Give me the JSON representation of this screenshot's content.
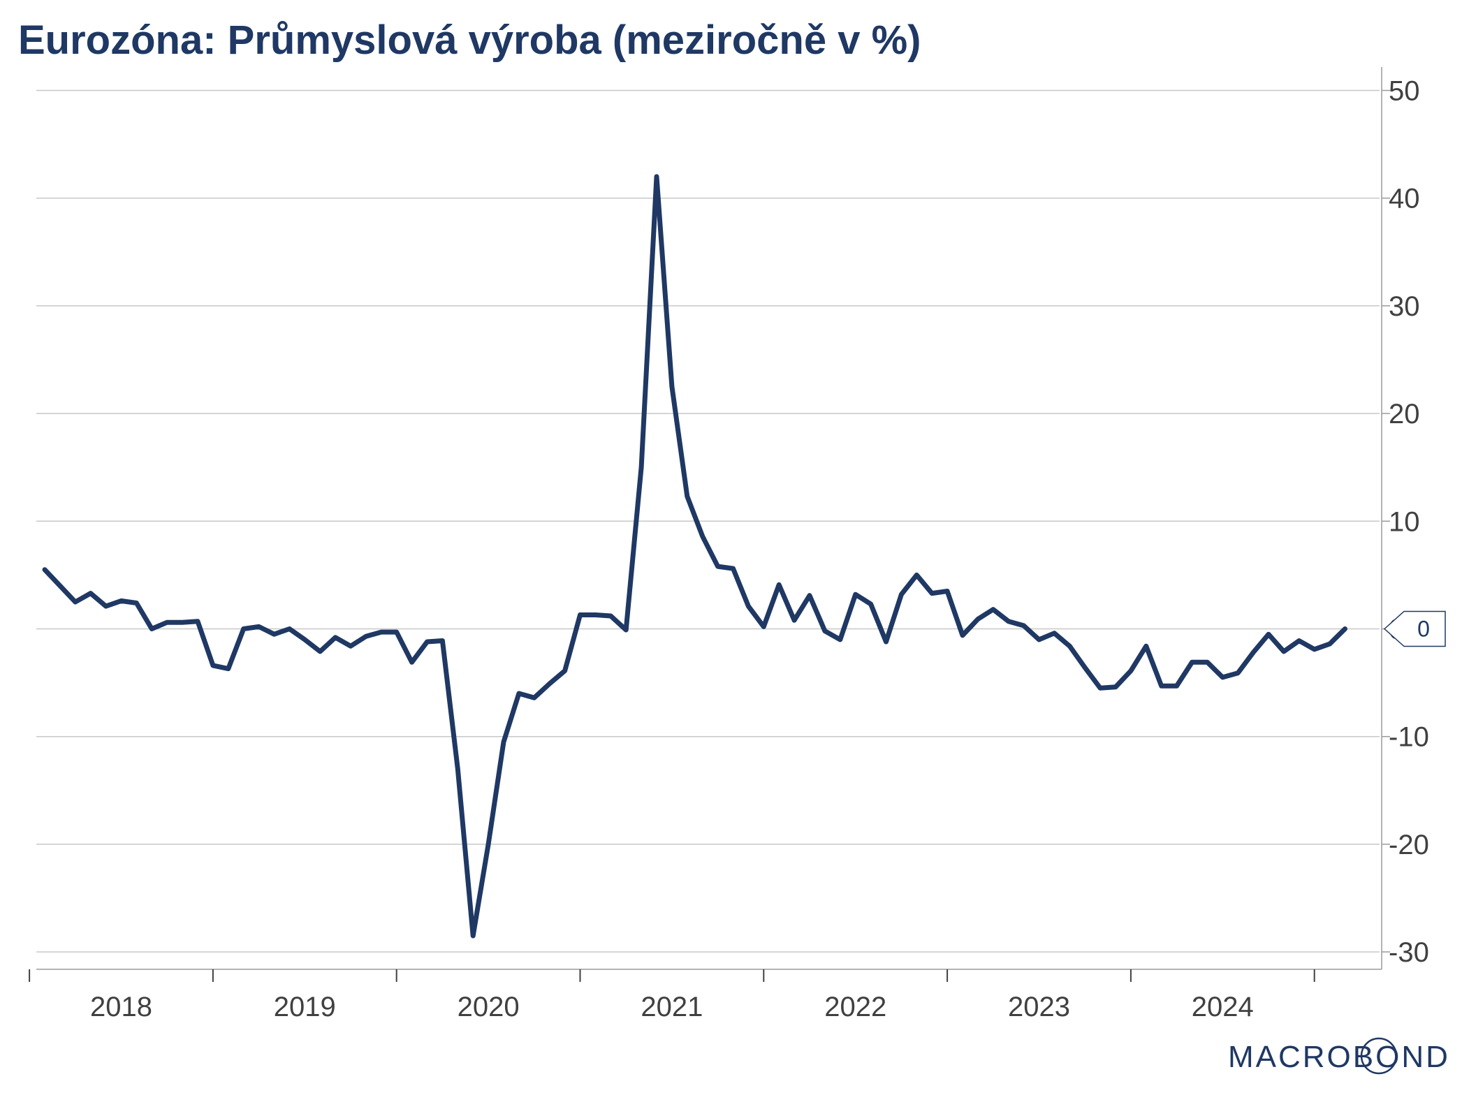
{
  "chart_data": {
    "type": "line",
    "title": "Eurozóna: Průmyslová výroba (meziročně v %)",
    "xlabel": "",
    "ylabel": "",
    "ylim": [
      -30,
      50
    ],
    "yticks": [
      50,
      40,
      30,
      20,
      10,
      0,
      -10,
      -20,
      -30
    ],
    "xticks": [
      "2018",
      "2019",
      "2020",
      "2021",
      "2022",
      "2023",
      "2024"
    ],
    "grid": true,
    "y_axis_position": "right",
    "line_color": "#1f3864",
    "last_value_label": "0",
    "series": [
      {
        "x": [
          "2018-01",
          "2018-02",
          "2018-03",
          "2018-04",
          "2018-05",
          "2018-06",
          "2018-07",
          "2018-08",
          "2018-09",
          "2018-10",
          "2018-11",
          "2018-12",
          "2019-01",
          "2019-02",
          "2019-03",
          "2019-04",
          "2019-05",
          "2019-06",
          "2019-07",
          "2019-08",
          "2019-09",
          "2019-10",
          "2019-11",
          "2019-12",
          "2020-01",
          "2020-02",
          "2020-03",
          "2020-04",
          "2020-05",
          "2020-06",
          "2020-07",
          "2020-08",
          "2020-09",
          "2020-10",
          "2020-11",
          "2020-12",
          "2021-01",
          "2021-02",
          "2021-03",
          "2021-04",
          "2021-05",
          "2021-06",
          "2021-07",
          "2021-08",
          "2021-09",
          "2021-10",
          "2021-11",
          "2021-12",
          "2022-01",
          "2022-02",
          "2022-03",
          "2022-04",
          "2022-05",
          "2022-06",
          "2022-07",
          "2022-08",
          "2022-09",
          "2022-10",
          "2022-11",
          "2022-12",
          "2023-01",
          "2023-02",
          "2023-03",
          "2023-04",
          "2023-05",
          "2023-06",
          "2023-07",
          "2023-08",
          "2023-09",
          "2023-10",
          "2023-11",
          "2023-12",
          "2024-01",
          "2024-02",
          "2024-03",
          "2024-04",
          "2024-05",
          "2024-06",
          "2024-07",
          "2024-08",
          "2024-09",
          "2024-10",
          "2024-11",
          "2024-12",
          "2025-01",
          "2025-02"
        ],
        "values": [
          5.5,
          4.0,
          2.5,
          3.3,
          2.1,
          2.6,
          2.4,
          0.0,
          0.6,
          0.6,
          0.7,
          -3.4,
          -3.7,
          0.0,
          0.2,
          -0.5,
          0.0,
          -1.0,
          -2.1,
          -0.8,
          -1.6,
          -0.7,
          -0.3,
          -0.3,
          -3.1,
          -1.2,
          -1.1,
          -13.0,
          -28.5,
          -20.0,
          -10.5,
          -6.0,
          -6.4,
          -5.1,
          -3.9,
          1.3,
          1.3,
          1.2,
          -0.1,
          15.0,
          42.0,
          22.5,
          12.3,
          8.6,
          5.8,
          5.6,
          2.1,
          0.2,
          4.1,
          0.8,
          3.1,
          -0.2,
          -1.0,
          3.2,
          2.3,
          -1.2,
          3.2,
          5.0,
          3.3,
          3.5,
          -0.6,
          0.9,
          1.8,
          0.7,
          0.3,
          -1.0,
          -0.4,
          -1.6,
          -3.6,
          -5.5,
          -5.4,
          -3.9,
          -1.6,
          -5.3,
          -5.3,
          -3.1,
          -3.1,
          -4.5,
          -4.1,
          -2.2,
          -0.5,
          -2.1,
          -1.1,
          -1.9,
          -1.4,
          0.0
        ]
      }
    ]
  },
  "logo": {
    "text": "MACROBOND"
  }
}
